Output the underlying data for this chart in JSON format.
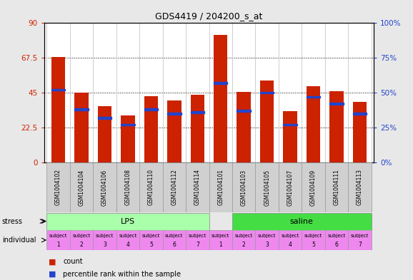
{
  "title": "GDS4419 / 204200_s_at",
  "samples": [
    "GSM1004102",
    "GSM1004104",
    "GSM1004106",
    "GSM1004108",
    "GSM1004110",
    "GSM1004112",
    "GSM1004114",
    "GSM1004101",
    "GSM1004103",
    "GSM1004105",
    "GSM1004107",
    "GSM1004109",
    "GSM1004111",
    "GSM1004113"
  ],
  "counts": [
    68.0,
    45.0,
    36.5,
    30.5,
    42.5,
    40.0,
    43.5,
    82.0,
    45.5,
    53.0,
    33.0,
    49.0,
    46.0,
    39.0
  ],
  "percentiles": [
    52,
    38,
    32,
    27,
    38,
    35,
    36,
    57,
    37,
    50,
    27,
    47,
    42,
    35
  ],
  "bar_color": "#cc2200",
  "percentile_color": "#2244cc",
  "left_ylim": [
    0,
    90
  ],
  "right_ylim": [
    0,
    100
  ],
  "left_yticks": [
    0,
    22.5,
    45,
    67.5,
    90
  ],
  "right_yticks": [
    0,
    25,
    50,
    75,
    100
  ],
  "left_ytick_labels": [
    "0",
    "22.5",
    "45",
    "67.5",
    "90"
  ],
  "right_ytick_labels": [
    "0%",
    "25%",
    "50%",
    "75%",
    "100%"
  ],
  "stress_labels": [
    "LPS",
    "saline"
  ],
  "stress_colors_lps": "#aaffaa",
  "stress_colors_saline": "#44dd44",
  "individual_color": "#ee88ee",
  "bg_color": "#e8e8e8",
  "axis_bg": "#ffffff",
  "lps_count": 7,
  "saline_count": 7
}
